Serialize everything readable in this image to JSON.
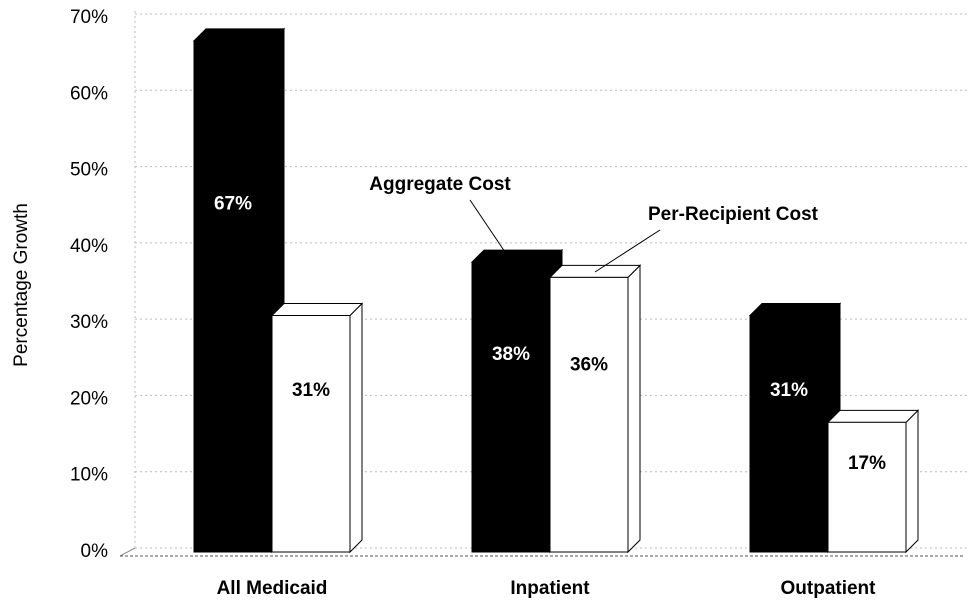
{
  "chart_data": {
    "type": "bar3d",
    "y_label": "Percentage Growth",
    "categories": [
      "All Medicaid",
      "Inpatient",
      "Outpatient"
    ],
    "series": [
      {
        "name": "Aggregate Cost",
        "color": "#000000",
        "values": [
          67,
          38,
          31
        ],
        "value_labels": [
          "67%",
          "38%",
          "31%"
        ]
      },
      {
        "name": "Per-Recipient Cost",
        "color": "#ffffff",
        "values": [
          31,
          36,
          17
        ],
        "value_labels": [
          "31%",
          "36%",
          "17%"
        ]
      }
    ],
    "ylim": [
      0,
      70
    ],
    "yticks": [
      {
        "value": 0,
        "label": "0%"
      },
      {
        "value": 10,
        "label": "10%"
      },
      {
        "value": 20,
        "label": "20%"
      },
      {
        "value": 30,
        "label": "30%"
      },
      {
        "value": 40,
        "label": "40%"
      },
      {
        "value": 50,
        "label": "50%"
      },
      {
        "value": 60,
        "label": "60%"
      },
      {
        "value": 70,
        "label": "70%"
      }
    ],
    "grid": true
  }
}
